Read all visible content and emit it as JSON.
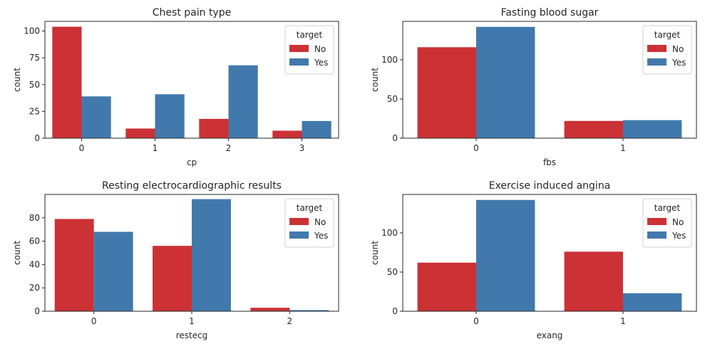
{
  "figure": {
    "background": "#ffffff"
  },
  "colors": {
    "No": "#d62728",
    "Yes": "#3a78b0",
    "bar_no": "#cc3135",
    "bar_yes": "#4279ac"
  },
  "chart_data": [
    {
      "type": "bar",
      "title": "Chest pain type",
      "xlabel": "cp",
      "ylabel": "count",
      "categories": [
        "0",
        "1",
        "2",
        "3"
      ],
      "series": [
        {
          "name": "No",
          "values": [
            104,
            9,
            18,
            7
          ]
        },
        {
          "name": "Yes",
          "values": [
            39,
            41,
            68,
            16
          ]
        }
      ],
      "ylim": [
        0,
        109
      ],
      "yticks": [
        0,
        25,
        50,
        75,
        100
      ],
      "legend": {
        "title": "target",
        "placement": "top-right"
      }
    },
    {
      "type": "bar",
      "title": "Fasting blood sugar",
      "xlabel": "fbs",
      "ylabel": "count",
      "categories": [
        "0",
        "1"
      ],
      "series": [
        {
          "name": "No",
          "values": [
            116,
            22
          ]
        },
        {
          "name": "Yes",
          "values": [
            142,
            23
          ]
        }
      ],
      "ylim": [
        0,
        149
      ],
      "yticks": [
        0,
        50,
        100
      ],
      "legend": {
        "title": "target",
        "placement": "top-right"
      }
    },
    {
      "type": "bar",
      "title": "Resting electrocardiographic results",
      "xlabel": "restecg",
      "ylabel": "count",
      "categories": [
        "0",
        "1",
        "2"
      ],
      "series": [
        {
          "name": "No",
          "values": [
            79,
            56,
            3
          ]
        },
        {
          "name": "Yes",
          "values": [
            68,
            96,
            1
          ]
        }
      ],
      "ylim": [
        0,
        100
      ],
      "yticks": [
        0,
        20,
        40,
        60,
        80
      ],
      "legend": {
        "title": "target",
        "placement": "top-right"
      }
    },
    {
      "type": "bar",
      "title": "Exercise induced angina",
      "xlabel": "exang",
      "ylabel": "count",
      "categories": [
        "0",
        "1"
      ],
      "series": [
        {
          "name": "No",
          "values": [
            62,
            76
          ]
        },
        {
          "name": "Yes",
          "values": [
            142,
            23
          ]
        }
      ],
      "ylim": [
        0,
        149
      ],
      "yticks": [
        0,
        50,
        100
      ],
      "legend": {
        "title": "target",
        "placement": "top-right"
      }
    }
  ]
}
